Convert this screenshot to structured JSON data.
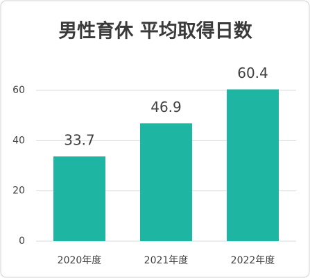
{
  "chart_data": {
    "type": "bar",
    "title": "男性育休 平均取得日数",
    "categories": [
      "2020年度",
      "2021年度",
      "2022年度"
    ],
    "values": [
      33.7,
      46.9,
      60.4
    ],
    "color": "#1fb5a3",
    "ylim": [
      0,
      60
    ],
    "yticks": [
      0,
      20,
      40,
      60
    ],
    "grid": true
  }
}
